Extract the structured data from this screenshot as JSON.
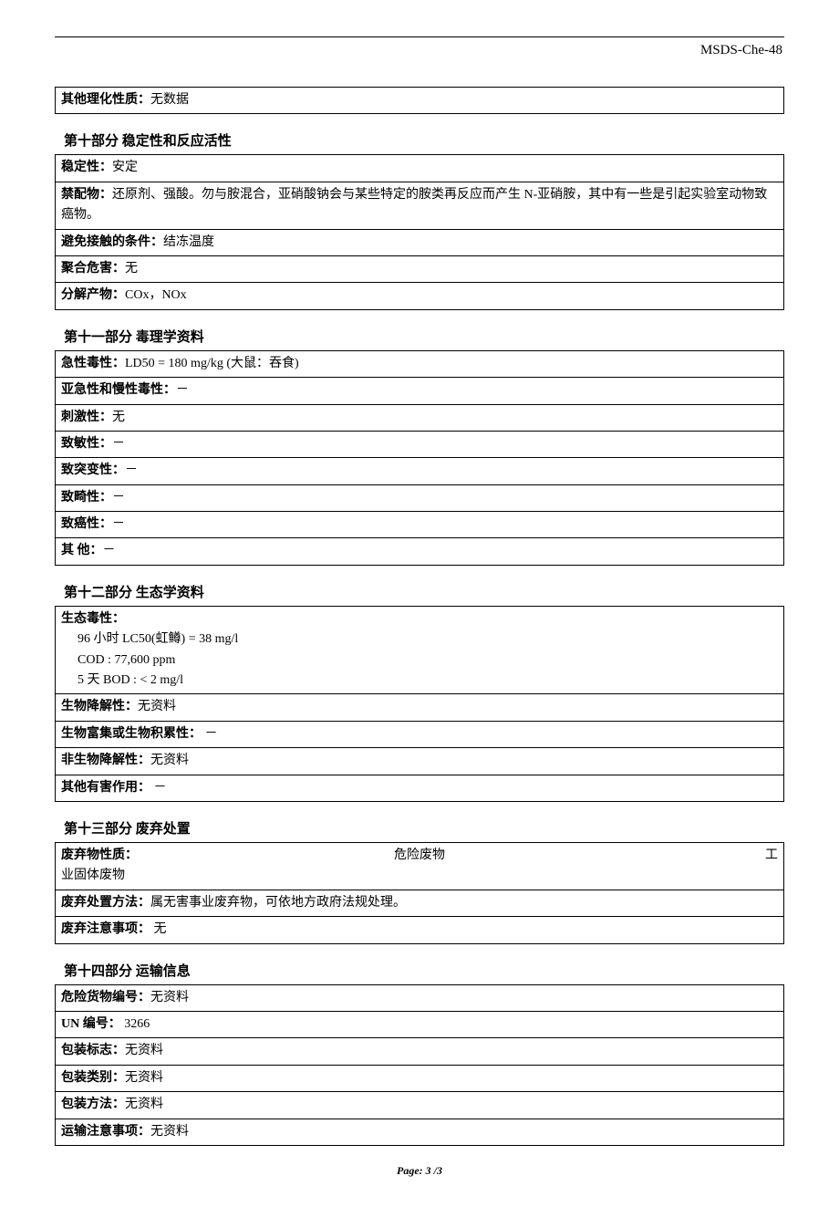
{
  "header": {
    "doc_id": "MSDS-Che-48"
  },
  "section9_tail": {
    "other_props_label": "其他理化性质：",
    "other_props_value": "无数据"
  },
  "section10": {
    "heading": "第十部分  稳定性和反应活性",
    "stability_label": "稳定性：",
    "stability_value": "安定",
    "incompat_label": "禁配物：",
    "incompat_value": "还原剂、强酸。勿与胺混合，亚硝酸钠会与某些特定的胺类再反应而产生 N-亚硝胺，其中有一些是引起实验室动物致癌物。",
    "avoid_label": "避免接触的条件：",
    "avoid_value": "结冻温度",
    "polymer_label": "聚合危害：",
    "polymer_value": "无",
    "decomp_label": "分解产物：",
    "decomp_value": "COx，NOx"
  },
  "section11": {
    "heading": "第十一部分  毒理学资料",
    "acute_label": "急性毒性：",
    "acute_value": "LD50 = 180 mg/kg    (大鼠：吞食)",
    "subacute_label": "亚急性和慢性毒性：",
    "subacute_value": "－",
    "irritancy_label": "刺激性：",
    "irritancy_value": "无",
    "sens_label": "致敏性：",
    "sens_value": "－",
    "mut_label": "致突变性：",
    "mut_value": "－",
    "terato_label": "致畸性：",
    "terato_value": "－",
    "carc_label": "致癌性：",
    "carc_value": "－",
    "other_label": "其        他：",
    "other_value": "－"
  },
  "section12": {
    "heading": "第十二部分  生态学资料",
    "ecotox_label": "生态毒性：",
    "ecotox_line1": "96 小时 LC50(虹鳟) = 38 mg/l",
    "ecotox_line2": "COD : 77,600 ppm",
    "ecotox_line3": "5  天 BOD : < 2 mg/l",
    "biodeg_label": "生物降解性：",
    "biodeg_value": "无资料",
    "bioacc_label": "生物富集或生物积累性：",
    "bioacc_value": " －",
    "nonbiodeg_label": "非生物降解性：",
    "nonbiodeg_value": "无资料",
    "otherharm_label": "其他有害作用：",
    "otherharm_value": " －"
  },
  "section13": {
    "heading": "第十三部分  废弃处置",
    "nature_label": "废弃物性质：",
    "nature_mid": "危险废物",
    "nature_right": "工",
    "nature_line2": "业固体废物",
    "method_label": "废弃处置方法：",
    "method_value": "属无害事业废弃物，可依地方政府法规处理。",
    "caution_label": "废弃注意事项：",
    "caution_value": "  无"
  },
  "section14": {
    "heading": "第十四部分  运输信息",
    "dg_no_label": "危险货物编号：",
    "dg_no_value": "无资料",
    "un_label": "UN 编号：",
    "un_value": " 3266",
    "mark_label": "包装标志：",
    "mark_value": "无资料",
    "class_label": "包装类别：",
    "class_value": "无资料",
    "pack_label": "包装方法：",
    "pack_value": "无资料",
    "trans_caution_label": "运输注意事项：",
    "trans_caution_value": "无资料"
  },
  "footer": {
    "page": "Page: 3 /3"
  }
}
